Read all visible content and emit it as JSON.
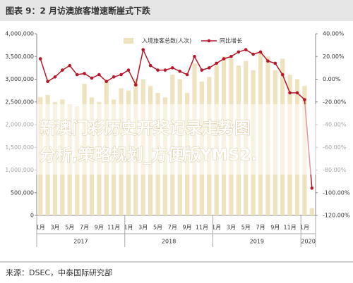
{
  "chart_data": {
    "type": "bar-line",
    "title": "图表 9：2 月访澳旅客增速断崖式下跌",
    "source": "来源：DSEC，中泰国际研究部",
    "overlay_lines": [
      "新澳门彩历史开奖记录走势图",
      "分析,策略规划_方便版YMS2."
    ],
    "categories": [
      "1月",
      null,
      "3月",
      null,
      "5月",
      null,
      "7月",
      null,
      "9月",
      null,
      "11月",
      null,
      "1月",
      null,
      "3月",
      null,
      "5月",
      null,
      "7月",
      null,
      "9月",
      null,
      "11月",
      null,
      "1月",
      null,
      "3月",
      null,
      "5月",
      null,
      "7月",
      null,
      "9月",
      null,
      "11月",
      null,
      "1月",
      null
    ],
    "groups": [
      "2017",
      "2018",
      "2019",
      "2020"
    ],
    "series": [
      {
        "name": "入境旅客总数(人次)",
        "color": "#efe2bf",
        "axis": "y",
        "values": [
          2600000,
          2650000,
          2500000,
          2550000,
          2450000,
          2400000,
          2900000,
          2600000,
          2500000,
          2950000,
          2550000,
          2800000,
          2750000,
          3000000,
          3000000,
          2850000,
          2700000,
          2600000,
          3100000,
          3000000,
          2700000,
          3350000,
          2950000,
          3050000,
          3300000,
          3500000,
          3450000,
          3300000,
          3400000,
          3200000,
          3600000,
          3500000,
          3200000,
          3450000,
          3100000,
          3000000,
          2850000,
          160000
        ]
      },
      {
        "name": "同比增长",
        "color": "#b5172b",
        "axis": "y2",
        "values": [
          18,
          -2,
          2,
          8,
          12,
          4,
          5,
          1,
          4,
          -2,
          2,
          4,
          8,
          -5,
          26,
          12,
          8,
          8,
          10,
          7,
          4,
          20,
          8,
          10,
          14,
          18,
          20,
          24,
          26,
          22,
          24,
          16,
          14,
          4,
          -12,
          -12,
          -18,
          -96
        ]
      }
    ],
    "ylim": [
      0,
      4000000
    ],
    "yticks": [
      0,
      {
        "value": 500000,
        "label": "500,000"
      },
      {
        "value": 1000000,
        "label": "1,000,000"
      },
      {
        "value": 1500000,
        "label": "1,500,000"
      },
      {
        "value": 2000000,
        "label": "2,000,000"
      },
      {
        "value": 2500000,
        "label": "2,500,000"
      },
      {
        "value": 3000000,
        "label": "3,000,000"
      },
      {
        "value": 3500000,
        "label": "3,500,000"
      },
      {
        "value": 4000000,
        "label": "4,000,000"
      }
    ],
    "y2lim": [
      -120,
      40
    ],
    "y2ticks": [
      {
        "value": -120,
        "label": "-120.00%"
      },
      {
        "value": -100,
        "label": "-100.00%"
      },
      {
        "value": -80,
        "label": "-80.00%"
      },
      {
        "value": -60,
        "label": "-60.00%"
      },
      {
        "value": -40,
        "label": "-40.00%"
      },
      {
        "value": -20,
        "label": "-20.00%"
      },
      {
        "value": 0,
        "label": "0.00%"
      },
      {
        "value": 20,
        "label": "20.00%"
      },
      {
        "value": 40,
        "label": "40.00%"
      }
    ]
  }
}
